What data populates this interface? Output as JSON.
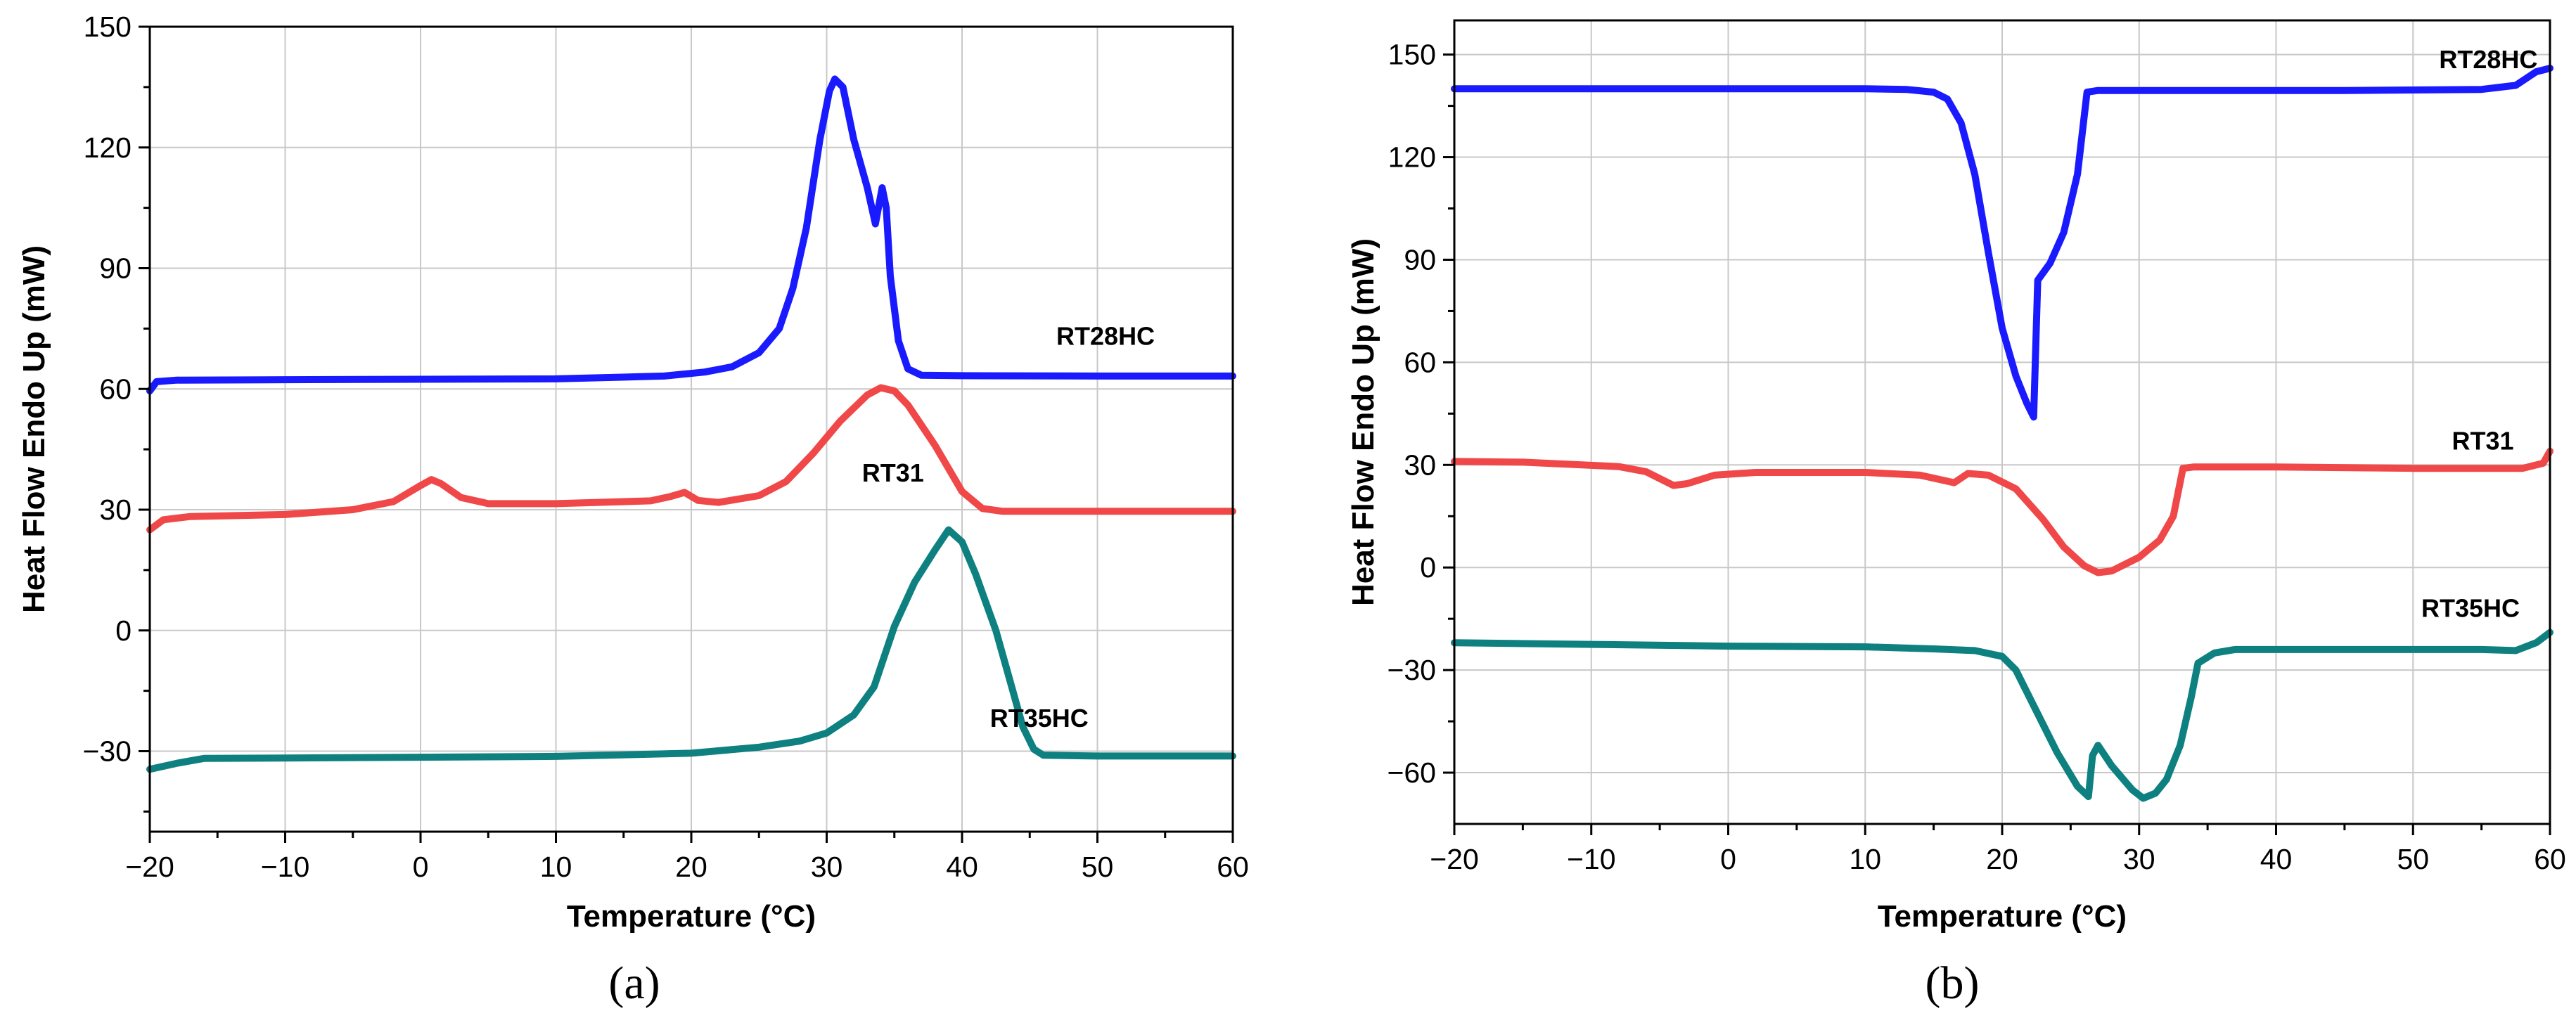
{
  "chart_data": [
    {
      "type": "line",
      "panel": "(a)",
      "title": "",
      "xlabel": "Temperature (°C)",
      "ylabel": "Heat Flow Endo Up (mW)",
      "xlim": [
        -20,
        60
      ],
      "ylim": [
        -50,
        150
      ],
      "xticks": [
        -20,
        -10,
        0,
        10,
        20,
        30,
        40,
        50,
        60
      ],
      "xtick_labels": [
        "−20",
        "−10",
        "0",
        "10",
        "20",
        "30",
        "40",
        "50",
        "60"
      ],
      "yticks": [
        -30,
        0,
        30,
        60,
        90,
        120,
        150
      ],
      "ytick_labels": [
        "−30",
        "0",
        "30",
        "60",
        "90",
        "120",
        "150"
      ],
      "grid": true,
      "series": [
        {
          "name": "RT28HC",
          "color": "#1a1aff",
          "label_at": [
            50.6,
            71
          ],
          "points": [
            [
              -20,
              59.5
            ],
            [
              -19.5,
              61.8
            ],
            [
              -18,
              62.2
            ],
            [
              -10,
              62.3
            ],
            [
              0,
              62.4
            ],
            [
              10,
              62.5
            ],
            [
              18,
              63.2
            ],
            [
              21,
              64.2
            ],
            [
              23,
              65.5
            ],
            [
              25,
              69
            ],
            [
              26.5,
              75
            ],
            [
              27.5,
              85
            ],
            [
              28.5,
              100
            ],
            [
              29.5,
              122
            ],
            [
              30.2,
              134
            ],
            [
              30.6,
              137
            ],
            [
              31.2,
              135
            ],
            [
              32,
              122
            ],
            [
              33,
              110
            ],
            [
              33.6,
              101
            ],
            [
              34.1,
              110
            ],
            [
              34.4,
              105
            ],
            [
              34.7,
              88
            ],
            [
              35.3,
              72
            ],
            [
              36,
              65
            ],
            [
              37,
              63.4
            ],
            [
              40,
              63.3
            ],
            [
              50,
              63.2
            ],
            [
              60,
              63.2
            ]
          ]
        },
        {
          "name": "RT31",
          "color": "#f04848",
          "label_at": [
            34.9,
            37
          ],
          "points": [
            [
              -20,
              25
            ],
            [
              -19,
              27.5
            ],
            [
              -17,
              28.3
            ],
            [
              -10,
              28.8
            ],
            [
              -5,
              30
            ],
            [
              -2,
              32
            ],
            [
              0,
              36
            ],
            [
              0.8,
              37.5
            ],
            [
              1.5,
              36.5
            ],
            [
              3,
              33
            ],
            [
              5,
              31.5
            ],
            [
              10,
              31.5
            ],
            [
              17,
              32.2
            ],
            [
              18.5,
              33.3
            ],
            [
              19.5,
              34.3
            ],
            [
              20.5,
              32.3
            ],
            [
              22,
              31.8
            ],
            [
              25,
              33.5
            ],
            [
              27,
              37
            ],
            [
              29,
              44
            ],
            [
              31,
              52
            ],
            [
              33,
              58.5
            ],
            [
              34,
              60.3
            ],
            [
              35,
              59.5
            ],
            [
              36,
              56
            ],
            [
              38,
              46
            ],
            [
              40,
              34.5
            ],
            [
              41.5,
              30.3
            ],
            [
              43,
              29.6
            ],
            [
              50,
              29.6
            ],
            [
              60,
              29.6
            ]
          ]
        },
        {
          "name": "RT35HC",
          "color": "#0f8080",
          "label_at": [
            45.7,
            -24
          ],
          "points": [
            [
              -20,
              -34.5
            ],
            [
              -18,
              -33
            ],
            [
              -16,
              -31.8
            ],
            [
              -10,
              -31.7
            ],
            [
              0,
              -31.5
            ],
            [
              10,
              -31.3
            ],
            [
              20,
              -30.5
            ],
            [
              25,
              -29
            ],
            [
              28,
              -27.5
            ],
            [
              30,
              -25.5
            ],
            [
              32,
              -21
            ],
            [
              33.5,
              -14
            ],
            [
              35,
              1
            ],
            [
              36.5,
              12
            ],
            [
              38,
              20
            ],
            [
              39,
              25
            ],
            [
              40,
              22
            ],
            [
              41,
              14
            ],
            [
              42.5,
              0
            ],
            [
              43.5,
              -12
            ],
            [
              44.5,
              -24
            ],
            [
              45.3,
              -29.5
            ],
            [
              46,
              -31
            ],
            [
              50,
              -31.2
            ],
            [
              60,
              -31.2
            ]
          ]
        }
      ]
    },
    {
      "type": "line",
      "panel": "(b)",
      "title": "",
      "xlabel": "Temperature (°C)",
      "ylabel": "Heat Flow Endo Up (mW)",
      "xlim": [
        -20,
        60
      ],
      "ylim": [
        -75,
        160
      ],
      "xticks": [
        -20,
        -10,
        0,
        10,
        20,
        30,
        40,
        50,
        60
      ],
      "xtick_labels": [
        "−20",
        "−10",
        "0",
        "10",
        "20",
        "30",
        "40",
        "50",
        "60"
      ],
      "yticks": [
        -60,
        -30,
        0,
        30,
        60,
        90,
        120,
        150
      ],
      "ytick_labels": [
        "−60",
        "−30",
        "0",
        "30",
        "60",
        "90",
        "120",
        "150"
      ],
      "grid": true,
      "series": [
        {
          "name": "RT28HC",
          "color": "#1a1aff",
          "label_at": [
            55.5,
            146
          ],
          "points": [
            [
              -20,
              140
            ],
            [
              0,
              140
            ],
            [
              10,
              140
            ],
            [
              13,
              139.8
            ],
            [
              15,
              139
            ],
            [
              16,
              137
            ],
            [
              17,
              130
            ],
            [
              18,
              115
            ],
            [
              19,
              92
            ],
            [
              20,
              70
            ],
            [
              21,
              56
            ],
            [
              21.8,
              48
            ],
            [
              22.3,
              44
            ],
            [
              22.6,
              84
            ],
            [
              23.5,
              89
            ],
            [
              24.5,
              98
            ],
            [
              25.5,
              115
            ],
            [
              26.2,
              139
            ],
            [
              27,
              139.5
            ],
            [
              35,
              139.5
            ],
            [
              45,
              139.5
            ],
            [
              55,
              139.8
            ],
            [
              57.5,
              141
            ],
            [
              59,
              145
            ],
            [
              60,
              146
            ]
          ]
        },
        {
          "name": "RT31",
          "color": "#f04848",
          "label_at": [
            55.1,
            34.5
          ],
          "points": [
            [
              -20,
              31
            ],
            [
              -15,
              30.8
            ],
            [
              -8,
              29.5
            ],
            [
              -6,
              28
            ],
            [
              -4,
              24
            ],
            [
              -3,
              24.5
            ],
            [
              -1,
              27
            ],
            [
              2,
              27.8
            ],
            [
              10,
              27.8
            ],
            [
              14,
              27
            ],
            [
              16.5,
              24.8
            ],
            [
              17.5,
              27.5
            ],
            [
              19,
              27
            ],
            [
              21,
              23
            ],
            [
              23,
              14
            ],
            [
              24.5,
              6
            ],
            [
              26,
              0.5
            ],
            [
              27,
              -1.5
            ],
            [
              28,
              -1
            ],
            [
              30,
              3
            ],
            [
              31.5,
              8
            ],
            [
              32.5,
              15
            ],
            [
              33.2,
              29
            ],
            [
              34,
              29.4
            ],
            [
              40,
              29.4
            ],
            [
              50,
              29
            ],
            [
              58,
              29
            ],
            [
              59.5,
              30.5
            ],
            [
              60,
              34
            ]
          ]
        },
        {
          "name": "RT35HC",
          "color": "#0f8080",
          "label_at": [
            54.2,
            -14.5
          ],
          "points": [
            [
              -20,
              -22
            ],
            [
              -10,
              -22.5
            ],
            [
              0,
              -23
            ],
            [
              10,
              -23.2
            ],
            [
              15,
              -23.8
            ],
            [
              18,
              -24.3
            ],
            [
              20,
              -26
            ],
            [
              21,
              -30
            ],
            [
              22.5,
              -42
            ],
            [
              24,
              -54
            ],
            [
              25.5,
              -64
            ],
            [
              26.3,
              -67
            ],
            [
              26.6,
              -55
            ],
            [
              27,
              -52
            ],
            [
              28,
              -58
            ],
            [
              29.5,
              -65
            ],
            [
              30.3,
              -67.5
            ],
            [
              31.2,
              -66
            ],
            [
              32,
              -62
            ],
            [
              33,
              -52
            ],
            [
              33.8,
              -38
            ],
            [
              34.3,
              -28
            ],
            [
              35.5,
              -25
            ],
            [
              37,
              -24
            ],
            [
              45,
              -24
            ],
            [
              55,
              -24
            ],
            [
              57.5,
              -24.3
            ],
            [
              59,
              -22
            ],
            [
              60,
              -19
            ]
          ]
        }
      ]
    }
  ]
}
